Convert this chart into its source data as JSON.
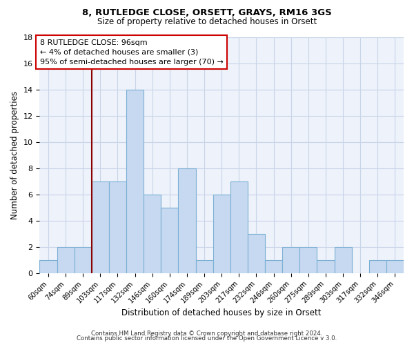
{
  "title": "8, RUTLEDGE CLOSE, ORSETT, GRAYS, RM16 3GS",
  "subtitle": "Size of property relative to detached houses in Orsett",
  "xlabel": "Distribution of detached houses by size in Orsett",
  "ylabel": "Number of detached properties",
  "bar_color": "#c6d9f0",
  "bar_edge_color": "#7bafd4",
  "bin_labels": [
    "60sqm",
    "74sqm",
    "89sqm",
    "103sqm",
    "117sqm",
    "132sqm",
    "146sqm",
    "160sqm",
    "174sqm",
    "189sqm",
    "203sqm",
    "217sqm",
    "232sqm",
    "246sqm",
    "260sqm",
    "275sqm",
    "289sqm",
    "303sqm",
    "317sqm",
    "332sqm",
    "346sqm"
  ],
  "bar_values": [
    1,
    2,
    2,
    7,
    7,
    14,
    6,
    5,
    8,
    1,
    6,
    7,
    3,
    1,
    2,
    2,
    1,
    2,
    0,
    1,
    1
  ],
  "vline_index": 3,
  "vline_color": "#8b0000",
  "ylim": [
    0,
    18
  ],
  "yticks": [
    0,
    2,
    4,
    6,
    8,
    10,
    12,
    14,
    16,
    18
  ],
  "annotation_title": "8 RUTLEDGE CLOSE: 96sqm",
  "annotation_line1": "← 4% of detached houses are smaller (3)",
  "annotation_line2": "95% of semi-detached houses are larger (70) →",
  "footer1": "Contains HM Land Registry data © Crown copyright and database right 2024.",
  "footer2": "Contains public sector information licensed under the Open Government Licence v 3.0.",
  "background_color": "#ffffff",
  "grid_color": "#c8d4e8",
  "plot_bg_color": "#eef2fa"
}
